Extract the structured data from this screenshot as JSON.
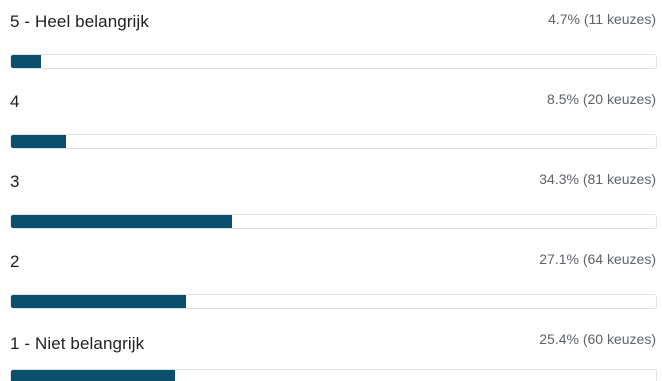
{
  "poll": {
    "options": [
      {
        "label": "5 - Heel belangrijk",
        "stat": "4.7% (11 keuzes)",
        "percent": 4.7,
        "count": 11
      },
      {
        "label": "4",
        "stat": "8.5% (20 keuzes)",
        "percent": 8.5,
        "count": 20
      },
      {
        "label": "3",
        "stat": "34.3% (81 keuzes)",
        "percent": 34.3,
        "count": 81
      },
      {
        "label": "2",
        "stat": "27.1% (64 keuzes)",
        "percent": 27.1,
        "count": 64
      },
      {
        "label": "1 - Niet belangrijk",
        "stat": "25.4% (60 keuzes)",
        "percent": 25.4,
        "count": 60
      }
    ],
    "colors": {
      "bar_fill": "#0b4f6c",
      "bar_track_border": "#dfe3e6"
    }
  }
}
